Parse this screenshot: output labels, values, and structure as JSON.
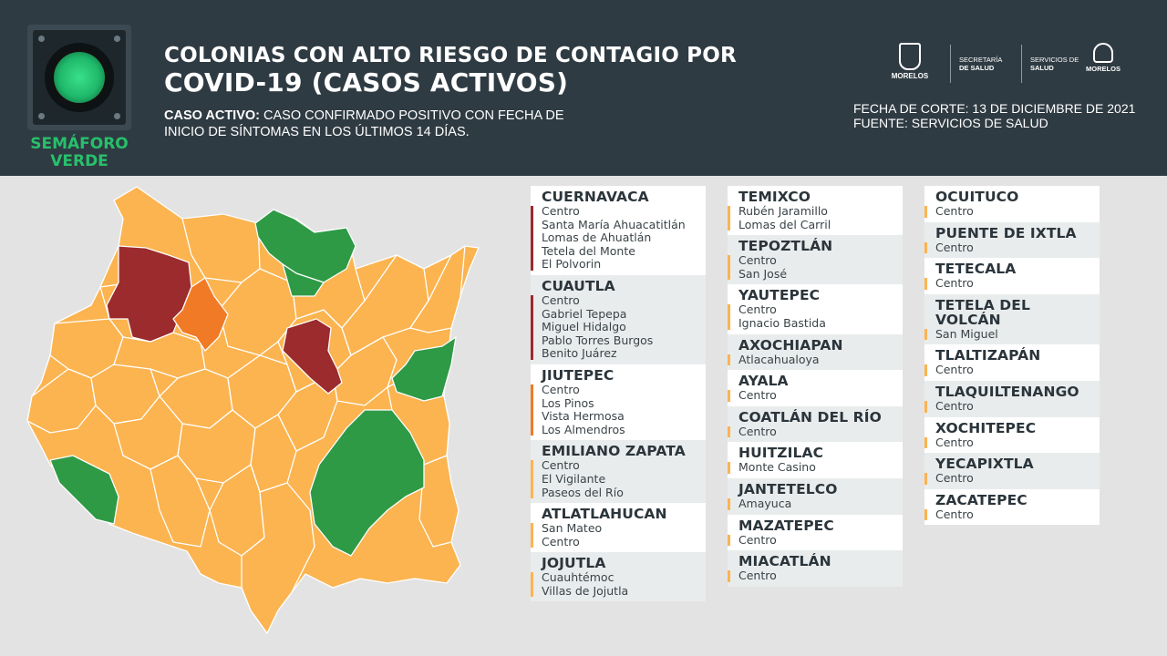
{
  "header": {
    "semaforo_label_line1": "SEMÁFORO",
    "semaforo_label_line2": "VERDE",
    "title_line1": "COLONIAS CON ALTO RIESGO DE CONTAGIO POR",
    "title_line2": "COVID-19 (CASOS ACTIVOS)",
    "definition_label": "CASO ACTIVO:",
    "definition_text_line1": " CASO CONFIRMADO POSITIVO CON FECHA DE",
    "definition_text_line2": "INICIO DE SÍNTOMAS EN LOS ÚLTIMOS 14 DÍAS.",
    "fecha": "FECHA DE CORTE: 13 DE DICIEMBRE DE 2021",
    "fuente": "FUENTE: SERVICIOS DE SALUD",
    "logos": {
      "morelos_name": "MORELOS",
      "secretaria_line1": "SECRETARÍA",
      "secretaria_line2": "DE SALUD",
      "servicios_line1": "SERVICIOS DE",
      "servicios_line2": "SALUD",
      "morelos2_name": "MORELOS"
    }
  },
  "colors": {
    "header_bg": "#2f3b43",
    "page_bg": "#e3e3e3",
    "semaforo_green": "#27c06b",
    "risk_red": "#9b2b2d",
    "risk_orange": "#f07a25",
    "risk_yellow": "#fbb450",
    "risk_green": "#2e9a46"
  },
  "map": {
    "legend_colors": [
      "red",
      "orange",
      "yellow",
      "green"
    ]
  },
  "municipios": {
    "col1": [
      {
        "name": "CUERNAVACA",
        "color": "#9b2b2d",
        "colonias": [
          "Centro",
          "Santa María Ahuacatitlán",
          "Lomas de Ahuatlán",
          "Tetela del Monte",
          "El Polvorin"
        ]
      },
      {
        "name": "CUAUTLA",
        "color": "#9b2b2d",
        "colonias": [
          "Centro",
          "Gabriel Tepepa",
          "Miguel Hidalgo",
          "Pablo Torres Burgos",
          "Benito Juárez"
        ]
      },
      {
        "name": "JIUTEPEC",
        "color": "#f07a25",
        "colonias": [
          "Centro",
          "Los Pinos",
          "Vista Hermosa",
          "Los Almendros"
        ]
      },
      {
        "name": "EMILIANO ZAPATA",
        "color": "#fbb450",
        "colonias": [
          "Centro",
          "El Vigilante",
          "Paseos del Río"
        ]
      },
      {
        "name": "ATLATLAHUCAN",
        "color": "#fbb450",
        "colonias": [
          "San Mateo",
          "Centro"
        ]
      },
      {
        "name": "JOJUTLA",
        "color": "#fbb450",
        "colonias": [
          "Cuauhtémoc",
          "Villas de Jojutla"
        ]
      }
    ],
    "col2": [
      {
        "name": "TEMIXCO",
        "color": "#fbb450",
        "colonias": [
          "Rubén Jaramillo",
          "Lomas del Carril"
        ]
      },
      {
        "name": "TEPOZTLÁN",
        "color": "#fbb450",
        "colonias": [
          "Centro",
          "San José"
        ]
      },
      {
        "name": "YAUTEPEC",
        "color": "#fbb450",
        "colonias": [
          "Centro",
          "Ignacio Bastida"
        ]
      },
      {
        "name": "AXOCHIAPAN",
        "color": "#fbb450",
        "colonias": [
          "Atlacahualoya"
        ]
      },
      {
        "name": "AYALA",
        "color": "#fbb450",
        "colonias": [
          "Centro"
        ]
      },
      {
        "name": "COATLÁN DEL RÍO",
        "color": "#fbb450",
        "colonias": [
          "Centro"
        ]
      },
      {
        "name": "HUITZILAC",
        "color": "#fbb450",
        "colonias": [
          "Monte Casino"
        ]
      },
      {
        "name": "JANTETELCO",
        "color": "#fbb450",
        "colonias": [
          "Amayuca"
        ]
      },
      {
        "name": "MAZATEPEC",
        "color": "#fbb450",
        "colonias": [
          "Centro"
        ]
      },
      {
        "name": "MIACATLÁN",
        "color": "#fbb450",
        "colonias": [
          "Centro"
        ]
      }
    ],
    "col3": [
      {
        "name": "OCUITUCO",
        "color": "#fbb450",
        "colonias": [
          "Centro"
        ]
      },
      {
        "name": "PUENTE DE IXTLA",
        "color": "#fbb450",
        "colonias": [
          "Centro"
        ]
      },
      {
        "name": "TETECALA",
        "color": "#fbb450",
        "colonias": [
          "Centro"
        ]
      },
      {
        "name": "TETELA DEL VOLCÁN",
        "color": "#fbb450",
        "colonias": [
          "San Miguel"
        ]
      },
      {
        "name": "TLALTIZAPÁN",
        "color": "#fbb450",
        "colonias": [
          "Centro"
        ]
      },
      {
        "name": "TLAQUILTENANGO",
        "color": "#fbb450",
        "colonias": [
          "Centro"
        ]
      },
      {
        "name": "XOCHITEPEC",
        "color": "#fbb450",
        "colonias": [
          "Centro"
        ]
      },
      {
        "name": "YECAPIXTLA",
        "color": "#fbb450",
        "colonias": [
          "Centro"
        ]
      },
      {
        "name": "ZACATEPEC",
        "color": "#fbb450",
        "colonias": [
          "Centro"
        ]
      }
    ]
  }
}
